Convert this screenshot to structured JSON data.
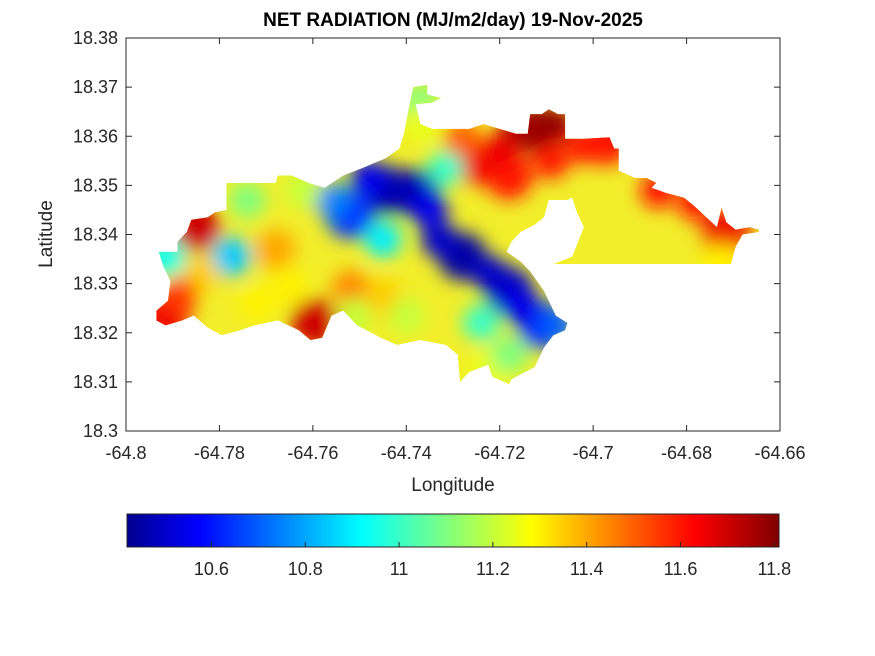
{
  "chart_data": {
    "type": "heatmap",
    "subtype": "filled-contour map",
    "title": "NET RADIATION (MJ/m2/day) 19-Nov-2025",
    "xlabel": "Longitude",
    "ylabel": "Latitude",
    "xlim": [
      -64.8,
      -64.66
    ],
    "ylim": [
      18.3,
      18.38
    ],
    "x_ticks": [
      "-64.8",
      "-64.78",
      "-64.76",
      "-64.74",
      "-64.72",
      "-64.7",
      "-64.68",
      "-64.66"
    ],
    "x_tick_values": [
      -64.8,
      -64.78,
      -64.76,
      -64.74,
      -64.72,
      -64.7,
      -64.68,
      -64.66
    ],
    "y_ticks": [
      "18.3",
      "18.31",
      "18.32",
      "18.33",
      "18.34",
      "18.35",
      "18.36",
      "18.37",
      "18.38"
    ],
    "y_tick_values": [
      18.3,
      18.31,
      18.32,
      18.33,
      18.34,
      18.35,
      18.36,
      18.37,
      18.38
    ],
    "grid": false,
    "colormap": "jet",
    "colorbar": {
      "location": "bottom",
      "range": [
        10.42,
        11.81
      ],
      "ticks": [
        "10.6",
        "10.8",
        "11",
        "11.2",
        "11.4",
        "11.6",
        "11.8"
      ],
      "tick_values": [
        10.6,
        10.8,
        11.0,
        11.2,
        11.4,
        11.6,
        11.8
      ]
    },
    "colormap_stops": [
      "#00008f",
      "#0000ff",
      "#00ffff",
      "#ffff00",
      "#ff0000",
      "#800000"
    ],
    "region_outline": [
      [
        -64.793,
        18.3365
      ],
      [
        -64.789,
        18.3365
      ],
      [
        -64.789,
        18.3385
      ],
      [
        -64.787,
        18.3405
      ],
      [
        -64.786,
        18.343
      ],
      [
        -64.7825,
        18.3435
      ],
      [
        -64.781,
        18.3445
      ],
      [
        -64.7785,
        18.345
      ],
      [
        -64.7785,
        18.3505
      ],
      [
        -64.768,
        18.3505
      ],
      [
        -64.7675,
        18.352
      ],
      [
        -64.7645,
        18.352
      ],
      [
        -64.761,
        18.3505
      ],
      [
        -64.7575,
        18.3495
      ],
      [
        -64.7535,
        18.352
      ],
      [
        -64.7495,
        18.3535
      ],
      [
        -64.7445,
        18.3555
      ],
      [
        -64.7415,
        18.3575
      ],
      [
        -64.7405,
        18.3605
      ],
      [
        -64.7395,
        18.3655
      ],
      [
        -64.7385,
        18.37
      ],
      [
        -64.7355,
        18.3705
      ],
      [
        -64.7355,
        18.3685
      ],
      [
        -64.7325,
        18.3678
      ],
      [
        -64.7345,
        18.3668
      ],
      [
        -64.738,
        18.3665
      ],
      [
        -64.737,
        18.3625
      ],
      [
        -64.7345,
        18.3615
      ],
      [
        -64.7265,
        18.3615
      ],
      [
        -64.7235,
        18.3625
      ],
      [
        -64.7165,
        18.3605
      ],
      [
        -64.714,
        18.3605
      ],
      [
        -64.7135,
        18.3645
      ],
      [
        -64.711,
        18.3645
      ],
      [
        -64.7095,
        18.3655
      ],
      [
        -64.7075,
        18.3645
      ],
      [
        -64.706,
        18.3645
      ],
      [
        -64.706,
        18.3595
      ],
      [
        -64.702,
        18.3595
      ],
      [
        -64.6965,
        18.3598
      ],
      [
        -64.6955,
        18.3575
      ],
      [
        -64.6945,
        18.3575
      ],
      [
        -64.6945,
        18.353
      ],
      [
        -64.691,
        18.3515
      ],
      [
        -64.6885,
        18.3515
      ],
      [
        -64.6865,
        18.3505
      ],
      [
        -64.6875,
        18.3495
      ],
      [
        -64.6845,
        18.3485
      ],
      [
        -64.6805,
        18.3475
      ],
      [
        -64.678,
        18.3455
      ],
      [
        -64.6735,
        18.3415
      ],
      [
        -64.6725,
        18.3455
      ],
      [
        -64.6715,
        18.3425
      ],
      [
        -64.6695,
        18.341
      ],
      [
        -64.6665,
        18.3415
      ],
      [
        -64.6645,
        18.341
      ],
      [
        -64.6645,
        18.3405
      ],
      [
        -64.668,
        18.34
      ],
      [
        -64.6695,
        18.3375
      ],
      [
        -64.6705,
        18.334
      ],
      [
        -64.7085,
        18.334
      ],
      [
        -64.7045,
        18.3355
      ],
      [
        -64.702,
        18.3415
      ],
      [
        -64.7035,
        18.3445
      ],
      [
        -64.7045,
        18.3475
      ],
      [
        -64.7055,
        18.347
      ],
      [
        -64.7095,
        18.347
      ],
      [
        -64.7105,
        18.3435
      ],
      [
        -64.7125,
        18.342
      ],
      [
        -64.7155,
        18.3405
      ],
      [
        -64.7175,
        18.3385
      ],
      [
        -64.7185,
        18.3365
      ],
      [
        -64.7155,
        18.3345
      ],
      [
        -64.7135,
        18.3325
      ],
      [
        -64.7105,
        18.3285
      ],
      [
        -64.708,
        18.3235
      ],
      [
        -64.7055,
        18.322
      ],
      [
        -64.706,
        18.3205
      ],
      [
        -64.7085,
        18.3195
      ],
      [
        -64.7105,
        18.317
      ],
      [
        -64.7125,
        18.313
      ],
      [
        -64.7175,
        18.3105
      ],
      [
        -64.718,
        18.3095
      ],
      [
        -64.7215,
        18.311
      ],
      [
        -64.7225,
        18.3135
      ],
      [
        -64.7265,
        18.312
      ],
      [
        -64.7285,
        18.31
      ],
      [
        -64.729,
        18.3155
      ],
      [
        -64.7315,
        18.3175
      ],
      [
        -64.737,
        18.3185
      ],
      [
        -64.742,
        18.3175
      ],
      [
        -64.7455,
        18.319
      ],
      [
        -64.7505,
        18.3215
      ],
      [
        -64.7535,
        18.3245
      ],
      [
        -64.756,
        18.3235
      ],
      [
        -64.758,
        18.319
      ],
      [
        -64.7605,
        18.3185
      ],
      [
        -64.763,
        18.3205
      ],
      [
        -64.7675,
        18.3225
      ],
      [
        -64.7725,
        18.3215
      ],
      [
        -64.7755,
        18.3205
      ],
      [
        -64.7795,
        18.3195
      ],
      [
        -64.7825,
        18.321
      ],
      [
        -64.7855,
        18.3235
      ],
      [
        -64.788,
        18.3225
      ],
      [
        -64.7915,
        18.3215
      ],
      [
        -64.7935,
        18.3225
      ],
      [
        -64.7935,
        18.3245
      ],
      [
        -64.791,
        18.3265
      ],
      [
        -64.7905,
        18.3305
      ],
      [
        -64.792,
        18.3335
      ]
    ],
    "value_features": [
      {
        "x": -64.744,
        "y": 18.349,
        "value": 10.45,
        "note": "deep blue minimum (NW blue band)"
      },
      {
        "x": -64.738,
        "y": 18.3485,
        "value": 10.47
      },
      {
        "x": -64.728,
        "y": 18.3355,
        "value": 10.45,
        "note": "deep blue minimum (central)"
      },
      {
        "x": -64.718,
        "y": 18.3285,
        "value": 10.5
      },
      {
        "x": -64.752,
        "y": 18.344,
        "value": 10.65
      },
      {
        "x": -64.711,
        "y": 18.3215,
        "value": 10.6
      },
      {
        "x": -64.7125,
        "y": 18.3615,
        "value": 11.81,
        "note": "dark red maximum (N)"
      },
      {
        "x": -64.7255,
        "y": 18.355,
        "value": 11.65
      },
      {
        "x": -64.718,
        "y": 18.352,
        "value": 11.6
      },
      {
        "x": -64.697,
        "y": 18.359,
        "value": 11.6
      },
      {
        "x": -64.6715,
        "y": 18.34,
        "value": 11.65
      },
      {
        "x": -64.6725,
        "y": 18.334,
        "value": 11.3
      },
      {
        "x": -64.785,
        "y": 18.3415,
        "value": 11.7,
        "note": "red maximum (W)"
      },
      {
        "x": -64.7595,
        "y": 18.322,
        "value": 11.7,
        "note": "red maximum (S)"
      },
      {
        "x": -64.7915,
        "y": 18.3235,
        "value": 11.65
      },
      {
        "x": -64.7775,
        "y": 18.3355,
        "value": 10.85,
        "note": "light blue pocket"
      },
      {
        "x": -64.7915,
        "y": 18.3355,
        "value": 10.95
      },
      {
        "x": -64.768,
        "y": 18.337,
        "value": 11.4
      },
      {
        "x": -64.745,
        "y": 18.327,
        "value": 11.35
      },
      {
        "x": -64.737,
        "y": 18.3665,
        "value": 11.1
      },
      {
        "x": -64.7225,
        "y": 18.3125,
        "value": 11.25
      }
    ]
  }
}
